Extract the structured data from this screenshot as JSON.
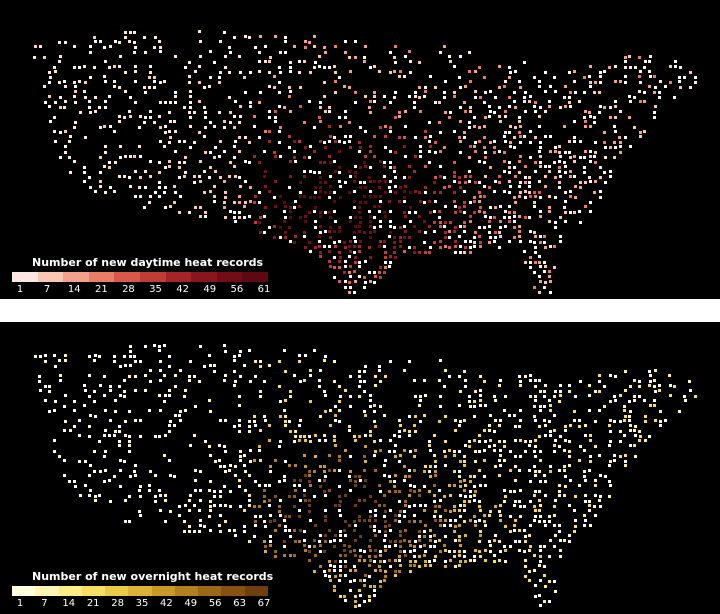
{
  "maps": [
    {
      "id": "day",
      "legend_title": "Number of new daytime heat records",
      "ticks": [
        "1",
        "7",
        "14",
        "21",
        "28",
        "35",
        "42",
        "49",
        "56",
        "61"
      ],
      "ramp": [
        "#fde7e0",
        "#fbc6b4",
        "#f5a08a",
        "#ea7d66",
        "#d9584a",
        "#c03c36",
        "#a42428",
        "#8a161d",
        "#730c16",
        "#5f0812"
      ],
      "hotspot_color_scale": "warm reds"
    },
    {
      "id": "night",
      "legend_title": "Number of new overnight heat records",
      "ticks": [
        "1",
        "7",
        "14",
        "21",
        "28",
        "35",
        "42",
        "49",
        "56",
        "63",
        "67"
      ],
      "ramp": [
        "#fffce0",
        "#fff6b3",
        "#fdee85",
        "#f6df62",
        "#ebcb45",
        "#dcb334",
        "#c99a28",
        "#b3801f",
        "#9c6818",
        "#855212",
        "#6f3f0d"
      ],
      "hotspot_color_scale": "yellows to browns"
    }
  ]
}
